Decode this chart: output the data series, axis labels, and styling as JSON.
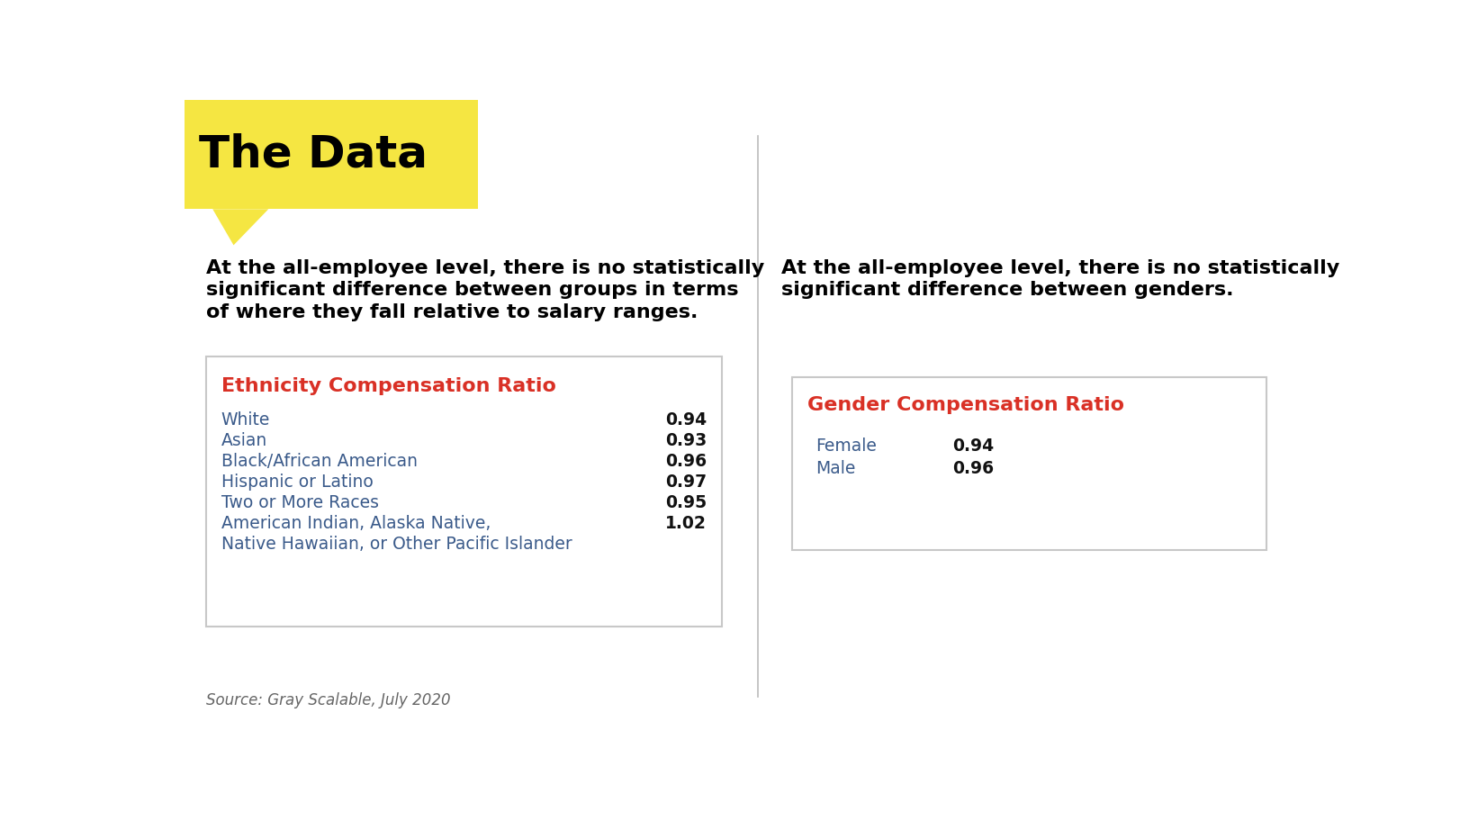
{
  "background_color": "#ffffff",
  "header_bg_color": "#f5e642",
  "header_text": "The Data",
  "header_text_color": "#000000",
  "header_fontsize": 36,
  "divider_color": "#bbbbbb",
  "left_desc_lines": [
    "At the all-employee level, there is no statistically",
    "significant difference between groups in terms",
    "of where they fall relative to salary ranges."
  ],
  "right_desc_lines": [
    "At the all-employee level, there is no statistically",
    "significant difference between genders."
  ],
  "desc_fontsize": 16,
  "desc_color": "#000000",
  "box_border_color": "#c8c8c8",
  "table_title_color": "#d93025",
  "table_title_fontsize": 16,
  "table_data_color": "#3a5a8a",
  "table_data_fontsize": 13.5,
  "table_value_fontsize": 13.5,
  "ethnicity_title": "Ethnicity Compensation Ratio",
  "ethnicity_rows": [
    [
      "White",
      "0.94"
    ],
    [
      "Asian",
      "0.93"
    ],
    [
      "Black/African American",
      "0.96"
    ],
    [
      "Hispanic or Latino",
      "0.97"
    ],
    [
      "Two or More Races",
      "0.95"
    ],
    [
      "American Indian, Alaska Native,",
      "1.02"
    ],
    [
      "Native Hawaiian, or Other Pacific Islander",
      ""
    ]
  ],
  "gender_title": "Gender Compensation Ratio",
  "gender_rows": [
    [
      "Female",
      "0.94"
    ],
    [
      "Male",
      "0.96"
    ]
  ],
  "source_text": "Source: Gray Scalable, July 2020",
  "source_fontsize": 12,
  "source_color": "#666666"
}
